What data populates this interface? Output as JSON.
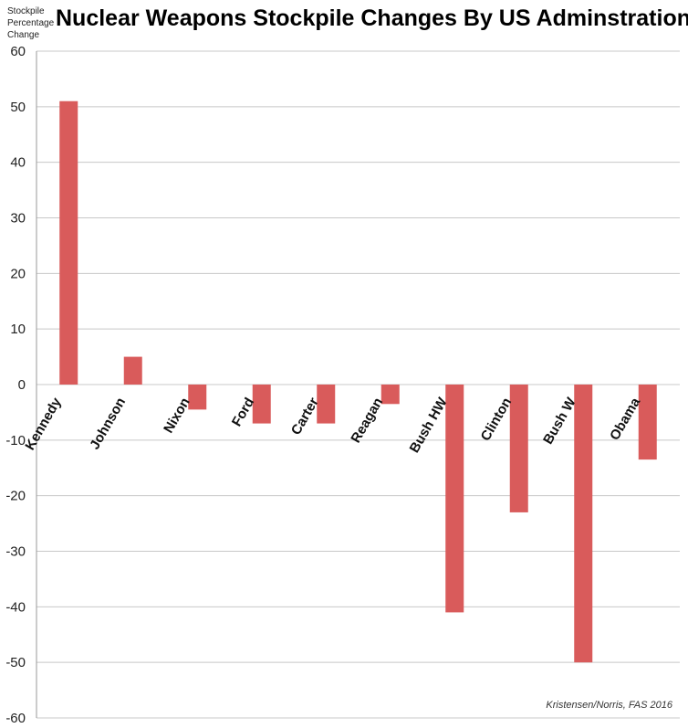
{
  "chart_data": {
    "type": "bar",
    "title": "Nuclear Weapons Stockpile Changes By US Adminstration",
    "ylabel_lines": [
      "Stockpile",
      "Percentage",
      "Change"
    ],
    "xlabel": "",
    "categories": [
      "Kennedy",
      "Johnson",
      "Nixon",
      "Ford",
      "Carter",
      "Reagan",
      "Bush HW",
      "Clinton",
      "Bush W",
      "Obama"
    ],
    "values": [
      51,
      5,
      -4.5,
      -7,
      -7,
      -3.5,
      -41,
      -23,
      -50,
      -13.5
    ],
    "ylim": [
      -60,
      60
    ],
    "yticks": [
      60,
      50,
      40,
      30,
      20,
      10,
      0,
      -10,
      -20,
      -30,
      -40,
      -50,
      -60
    ],
    "grid": true,
    "bar_color": "#d95b5b",
    "source": "Kristensen/Norris, FAS 2016"
  }
}
